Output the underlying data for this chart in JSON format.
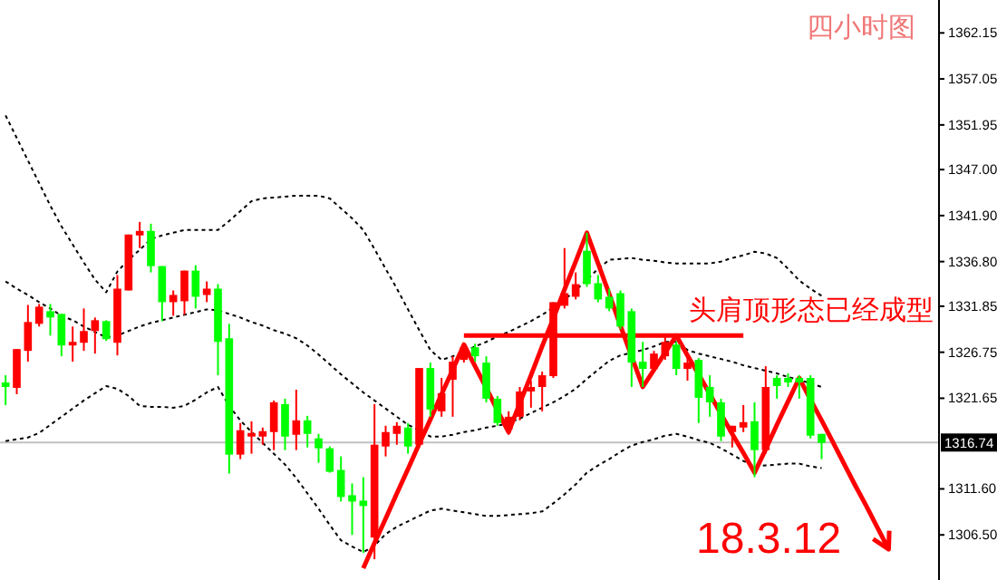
{
  "chart_data": {
    "type": "candlestick",
    "title": "四小时图",
    "categories": [
      null,
      null,
      null,
      null,
      null,
      null,
      null,
      null,
      null,
      null,
      null,
      null,
      null,
      null,
      null,
      null,
      null,
      null,
      null,
      null,
      null,
      null,
      null,
      null,
      null,
      null,
      null,
      null,
      null,
      null,
      null,
      null,
      null,
      null,
      null,
      null,
      null,
      null,
      null,
      null,
      null,
      null,
      null,
      null,
      null,
      null,
      null,
      null,
      null,
      null,
      null,
      null,
      null,
      null,
      null,
      null,
      null,
      null,
      null,
      null,
      null,
      null,
      null,
      null,
      null,
      null,
      null,
      null,
      null,
      null,
      null,
      null,
      null,
      null,
      null,
      null,
      null,
      null,
      null,
      null,
      null,
      null,
      null,
      null
    ],
    "ohlc": [
      [
        1323.4,
        1324.2,
        1320.9,
        1322.9
      ],
      [
        1322.8,
        1327.1,
        1322.1,
        1327.1
      ],
      [
        1326.9,
        1332.0,
        1325.7,
        1330.1
      ],
      [
        1329.9,
        1332.1,
        1329.6,
        1331.8
      ],
      [
        1331.3,
        1332.1,
        1328.6,
        1330.6
      ],
      [
        1331.0,
        1331.0,
        1326.3,
        1327.5
      ],
      [
        1327.5,
        1329.6,
        1325.7,
        1327.9
      ],
      [
        1327.8,
        1331.6,
        1326.9,
        1329.1
      ],
      [
        1329.1,
        1330.6,
        1326.6,
        1330.3
      ],
      [
        1330.2,
        1330.3,
        1328.0,
        1328.2
      ],
      [
        1327.8,
        1335.3,
        1326.4,
        1333.8
      ],
      [
        1333.6,
        1339.8,
        1333.6,
        1339.8
      ],
      [
        1339.7,
        1341.2,
        1338.3,
        1340.2
      ],
      [
        1340.2,
        1341.0,
        1335.6,
        1336.3
      ],
      [
        1336.3,
        1336.3,
        1330.2,
        1332.3
      ],
      [
        1332.3,
        1333.6,
        1330.8,
        1333.1
      ],
      [
        1332.4,
        1335.8,
        1330.9,
        1335.8
      ],
      [
        1335.8,
        1336.4,
        1331.6,
        1332.9
      ],
      [
        1333.1,
        1334.6,
        1332.3,
        1333.8
      ],
      [
        1333.8,
        1334.3,
        1324.2,
        1327.9
      ],
      [
        1328.3,
        1329.9,
        1313.3,
        1315.4
      ],
      [
        1315.4,
        1318.9,
        1314.9,
        1318.1
      ],
      [
        1317.4,
        1319.1,
        1315.5,
        1317.8
      ],
      [
        1317.4,
        1318.4,
        1316.5,
        1318.0
      ],
      [
        1317.9,
        1321.4,
        1315.9,
        1321.2
      ],
      [
        1321.0,
        1321.6,
        1315.9,
        1317.4
      ],
      [
        1317.6,
        1322.6,
        1315.9,
        1319.2
      ],
      [
        1319.2,
        1319.7,
        1316.2,
        1317.7
      ],
      [
        1317.2,
        1317.7,
        1314.5,
        1316.1
      ],
      [
        1316.1,
        1316.3,
        1313.4,
        1313.5
      ],
      [
        1313.7,
        1315.2,
        1310.2,
        1310.7
      ],
      [
        1310.9,
        1312.2,
        1306.5,
        1310.2
      ],
      [
        1310.3,
        1312.9,
        1304.5,
        1309.7
      ],
      [
        1306.2,
        1321.0,
        1303.8,
        1316.5
      ],
      [
        1316.3,
        1318.6,
        1315.2,
        1317.9
      ],
      [
        1317.7,
        1319.0,
        1316.5,
        1318.6
      ],
      [
        1318.4,
        1318.9,
        1315.5,
        1316.3
      ],
      [
        1316.5,
        1325.0,
        1316.2,
        1325.0
      ],
      [
        1325.0,
        1325.6,
        1319.6,
        1320.4
      ],
      [
        1320.2,
        1323.9,
        1319.6,
        1322.2
      ],
      [
        1323.7,
        1326.3,
        1319.6,
        1325.7
      ],
      [
        1325.9,
        1327.7,
        1325.6,
        1327.3
      ],
      [
        1327.3,
        1327.7,
        1325.7,
        1326.3
      ],
      [
        1325.6,
        1326.3,
        1321.2,
        1321.6
      ],
      [
        1321.6,
        1321.9,
        1318.6,
        1318.9
      ],
      [
        1318.2,
        1320.2,
        1317.6,
        1319.6
      ],
      [
        1319.6,
        1322.9,
        1319.2,
        1322.4
      ],
      [
        1322.4,
        1323.6,
        1320.6,
        1322.9
      ],
      [
        1322.9,
        1324.6,
        1320.2,
        1324.2
      ],
      [
        1324.1,
        1332.3,
        1323.9,
        1332.3
      ],
      [
        1331.9,
        1338.3,
        1331.6,
        1333.3
      ],
      [
        1332.9,
        1335.6,
        1332.6,
        1334.3
      ],
      [
        1338.0,
        1340.0,
        1334.0,
        1334.3
      ],
      [
        1334.4,
        1335.3,
        1332.3,
        1332.6
      ],
      [
        1332.9,
        1333.8,
        1331.3,
        1331.6
      ],
      [
        1333.3,
        1333.6,
        1329.3,
        1329.6
      ],
      [
        1331.3,
        1331.6,
        1322.9,
        1325.6
      ],
      [
        1325.7,
        1327.9,
        1322.9,
        1324.9
      ],
      [
        1324.9,
        1326.9,
        1324.8,
        1326.6
      ],
      [
        1326.3,
        1328.6,
        1325.9,
        1327.9
      ],
      [
        1327.6,
        1327.9,
        1324.2,
        1324.9
      ],
      [
        1324.9,
        1326.3,
        1323.6,
        1325.6
      ],
      [
        1325.9,
        1326.1,
        1318.9,
        1321.7
      ],
      [
        1322.9,
        1324.2,
        1319.6,
        1321.2
      ],
      [
        1321.2,
        1321.6,
        1316.9,
        1317.4
      ],
      [
        1317.9,
        1318.6,
        1316.2,
        1318.6
      ],
      [
        1318.4,
        1320.9,
        1317.9,
        1319.0
      ],
      [
        1319.1,
        1321.2,
        1312.9,
        1315.9
      ],
      [
        1315.9,
        1325.2,
        1315.5,
        1322.9
      ],
      [
        1323.9,
        1324.2,
        1321.6,
        1323.0
      ],
      [
        1323.9,
        1324.4,
        1322.9,
        1323.4
      ],
      [
        1323.9,
        1324.2,
        1321.6,
        1323.4
      ],
      [
        1323.9,
        1324.2,
        1317.2,
        1317.5
      ],
      [
        1317.7,
        1317.7,
        1314.9,
        1316.7
      ],
      null,
      null,
      null,
      null,
      null,
      null,
      null,
      null,
      null,
      null
    ],
    "colors": [
      "#00ff00",
      "#ff0000",
      "#ff0000",
      "#ff0000",
      "#00ff00",
      "#00ff00",
      "#ff0000",
      "#ff0000",
      "#ff0000",
      "#00ff00",
      "#ff0000",
      "#ff0000",
      "#ff0000",
      "#00ff00",
      "#00ff00",
      "#ff0000",
      "#ff0000",
      "#00ff00",
      "#ff0000",
      "#00ff00",
      "#00ff00",
      "#ff0000",
      "#ff0000",
      "#ff0000",
      "#ff0000",
      "#00ff00",
      "#ff0000",
      "#00ff00",
      "#00ff00",
      "#00ff00",
      "#00ff00",
      "#00ff00",
      "#00ff00",
      "#ff0000",
      "#ff0000",
      "#ff0000",
      "#00ff00",
      "#ff0000",
      "#00ff00",
      "#ff0000",
      "#ff0000",
      "#ff0000",
      "#00ff00",
      "#00ff00",
      "#00ff00",
      "#ff0000",
      "#ff0000",
      "#ff0000",
      "#ff0000",
      "#ff0000",
      "#ff0000",
      "#ff0000",
      "#00ff00",
      "#00ff00",
      "#00ff00",
      "#00ff00",
      "#00ff00",
      "#00ff00",
      "#ff0000",
      "#ff0000",
      "#00ff00",
      "#ff0000",
      "#00ff00",
      "#00ff00",
      "#00ff00",
      "#ff0000",
      "#ff0000",
      "#00ff00",
      "#ff0000",
      "#00ff00",
      "#00ff00",
      "#00ff00",
      "#00ff00",
      "#00ff00",
      null,
      null,
      null,
      null,
      null,
      null,
      null,
      null,
      null,
      null
    ],
    "series": [
      {
        "type": "line",
        "color": "#000000",
        "line_style": "dashed",
        "values": [
          1353.0,
          1350.5,
          1348.0,
          1345.5,
          1343.0,
          1340.7,
          1338.7,
          1336.7,
          1334.8,
          1333.4,
          1335.7,
          1337.0,
          1338.1,
          1339.3,
          1339.7,
          1340.0,
          1340.3,
          1340.3,
          1340.3,
          1340.3,
          1341.3,
          1342.4,
          1343.5,
          1343.8,
          1343.9,
          1344.0,
          1344.1,
          1344.1,
          1344.1,
          1343.8,
          1342.7,
          1341.6,
          1340.3,
          1338.2,
          1336.0,
          1333.8,
          1331.5,
          1329.2,
          1327.0,
          1325.9,
          1326.3,
          1326.8,
          1327.4,
          1327.9,
          1328.5,
          1329.0,
          1329.6,
          1330.2,
          1330.9,
          1331.7,
          1332.6,
          1333.6,
          1334.8,
          1336.0,
          1337.0,
          1337.1,
          1337.2,
          1337.0,
          1336.9,
          1336.7,
          1336.6,
          1336.6,
          1336.6,
          1336.6,
          1336.8,
          1337.2,
          1337.5,
          1337.9,
          1337.7,
          1337.2,
          1336.0,
          1334.7,
          1333.8,
          1333.0,
          null,
          null,
          null,
          null,
          null,
          null,
          null,
          null,
          null,
          null
        ]
      },
      {
        "type": "line",
        "color": "#000000",
        "line_style": "dashed",
        "values": [
          1334.6,
          1333.8,
          1333.1,
          1332.3,
          1331.6,
          1330.8,
          1330.3,
          1329.6,
          1329.0,
          1328.4,
          1328.6,
          1329.1,
          1329.6,
          1330.0,
          1330.3,
          1330.6,
          1330.9,
          1331.2,
          1331.5,
          1331.4,
          1331.0,
          1330.6,
          1330.1,
          1329.7,
          1329.2,
          1328.8,
          1328.3,
          1327.5,
          1326.5,
          1325.4,
          1324.3,
          1323.3,
          1322.3,
          1321.4,
          1320.5,
          1319.6,
          1318.7,
          1318.1,
          1317.4,
          1317.4,
          1317.6,
          1317.9,
          1318.1,
          1318.4,
          1318.6,
          1318.9,
          1319.4,
          1320.0,
          1320.6,
          1321.2,
          1321.9,
          1322.7,
          1323.8,
          1324.8,
          1325.8,
          1326.4,
          1326.7,
          1327.0,
          1327.4,
          1327.9,
          1327.9,
          1327.0,
          1326.6,
          1326.3,
          1326.0,
          1325.7,
          1325.3,
          1325.0,
          1324.7,
          1324.4,
          1324.0,
          1323.7,
          1323.3,
          1322.9,
          null,
          null,
          null,
          null,
          null,
          null,
          null,
          null,
          null,
          null
        ]
      },
      {
        "type": "line",
        "color": "#000000",
        "line_style": "dashed",
        "values": [
          1316.9,
          1317.1,
          1317.3,
          1317.8,
          1318.7,
          1319.6,
          1320.5,
          1321.4,
          1322.2,
          1323.0,
          1322.7,
          1321.9,
          1320.8,
          1320.7,
          1320.7,
          1320.6,
          1320.8,
          1321.5,
          1322.3,
          1322.9,
          1320.8,
          1319.2,
          1317.9,
          1316.7,
          1315.5,
          1314.3,
          1312.8,
          1311.1,
          1309.4,
          1307.6,
          1305.9,
          1305.2,
          1304.6,
          1305.3,
          1306.6,
          1307.4,
          1308.0,
          1308.6,
          1309.2,
          1309.4,
          1309.2,
          1309.0,
          1308.8,
          1308.6,
          1308.6,
          1308.7,
          1308.8,
          1308.9,
          1309.1,
          1310.0,
          1311.0,
          1312.1,
          1313.4,
          1314.2,
          1314.9,
          1315.7,
          1316.4,
          1316.8,
          1317.1,
          1317.5,
          1317.7,
          1317.4,
          1317.0,
          1316.7,
          1316.1,
          1315.4,
          1314.7,
          1314.1,
          1314.2,
          1314.3,
          1314.4,
          1314.4,
          1314.1,
          1313.9,
          null,
          null,
          null,
          null,
          null,
          null,
          null,
          null,
          null,
          null
        ]
      },
      {
        "type": "line",
        "color": "#ff0000",
        "line_style": "solid",
        "values": [
          null,
          null,
          null,
          null,
          null,
          null,
          null,
          null,
          null,
          null,
          null,
          null,
          null,
          null,
          null,
          null,
          null,
          null,
          null,
          null,
          null,
          null,
          null,
          null,
          null,
          null,
          null,
          null,
          null,
          null,
          null,
          null,
          null,
          null,
          null,
          null,
          null,
          null,
          null,
          null,
          null,
          1328.6,
          1328.6,
          1328.6,
          1328.6,
          1328.6,
          1328.6,
          1328.6,
          1328.6,
          1328.6,
          1328.6,
          1328.6,
          1328.6,
          1328.6,
          1328.6,
          1328.6,
          1328.6,
          1328.6,
          1328.6,
          1328.6,
          1328.6,
          1328.6,
          1328.6,
          1328.6,
          1328.6,
          1328.6,
          1328.6,
          null,
          null,
          null,
          null,
          null,
          null,
          null,
          null,
          null,
          null,
          null,
          null,
          null,
          null,
          null,
          null,
          null
        ]
      },
      {
        "type": "line",
        "color": "#ff0000",
        "line_style": "solid",
        "values": [
          null,
          null,
          null,
          null,
          null,
          null,
          null,
          null,
          null,
          null,
          null,
          null,
          null,
          null,
          null,
          null,
          null,
          null,
          null,
          null,
          null,
          null,
          null,
          null,
          null,
          null,
          null,
          null,
          null,
          null,
          null,
          null,
          1302.8,
          1305.6,
          1308.3,
          1311.1,
          1313.8,
          1316.6,
          1319.3,
          1322.1,
          1324.8,
          1327.6,
          1325.2,
          1322.8,
          1320.3,
          1317.9,
          1321.1,
          1324.2,
          1327.4,
          1330.5,
          1333.7,
          1336.8,
          1340.0,
          1336.6,
          1333.2,
          1329.7,
          1326.3,
          1322.9,
          1324.8,
          1326.7,
          1328.6,
          1326.4,
          1324.3,
          1322.1,
          1319.9,
          1317.7,
          1315.6,
          1313.4,
          1316.0,
          1318.7,
          1321.3,
          1323.9,
          1321.5,
          1319.2,
          1316.8,
          1314.4,
          1312.0,
          1309.7,
          1307.3,
          1304.9,
          null,
          null,
          null,
          null
        ]
      }
    ],
    "ylim": [
      1301.5,
      1365.8
    ],
    "yticks": [
      {
        "value": 1306.5,
        "label": "1306.50"
      },
      {
        "value": 1311.6,
        "label": "1311.60"
      },
      1321.65,
      1326.75,
      1331.85,
      {
        "value": 1336.8,
        "label": "1336.80"
      },
      {
        "value": 1341.9,
        "label": "1341.90"
      },
      {
        "value": 1347,
        "label": "1347.00"
      },
      1351.95,
      1357.05,
      1362.15
    ],
    "ref_lines": [
      {
        "axis": "y",
        "value": 1316.74,
        "label": "1316.74",
        "color": "#c0c0c0"
      }
    ],
    "annotations": [
      "头肩顶形态已经成型",
      "18.3.12"
    ]
  }
}
